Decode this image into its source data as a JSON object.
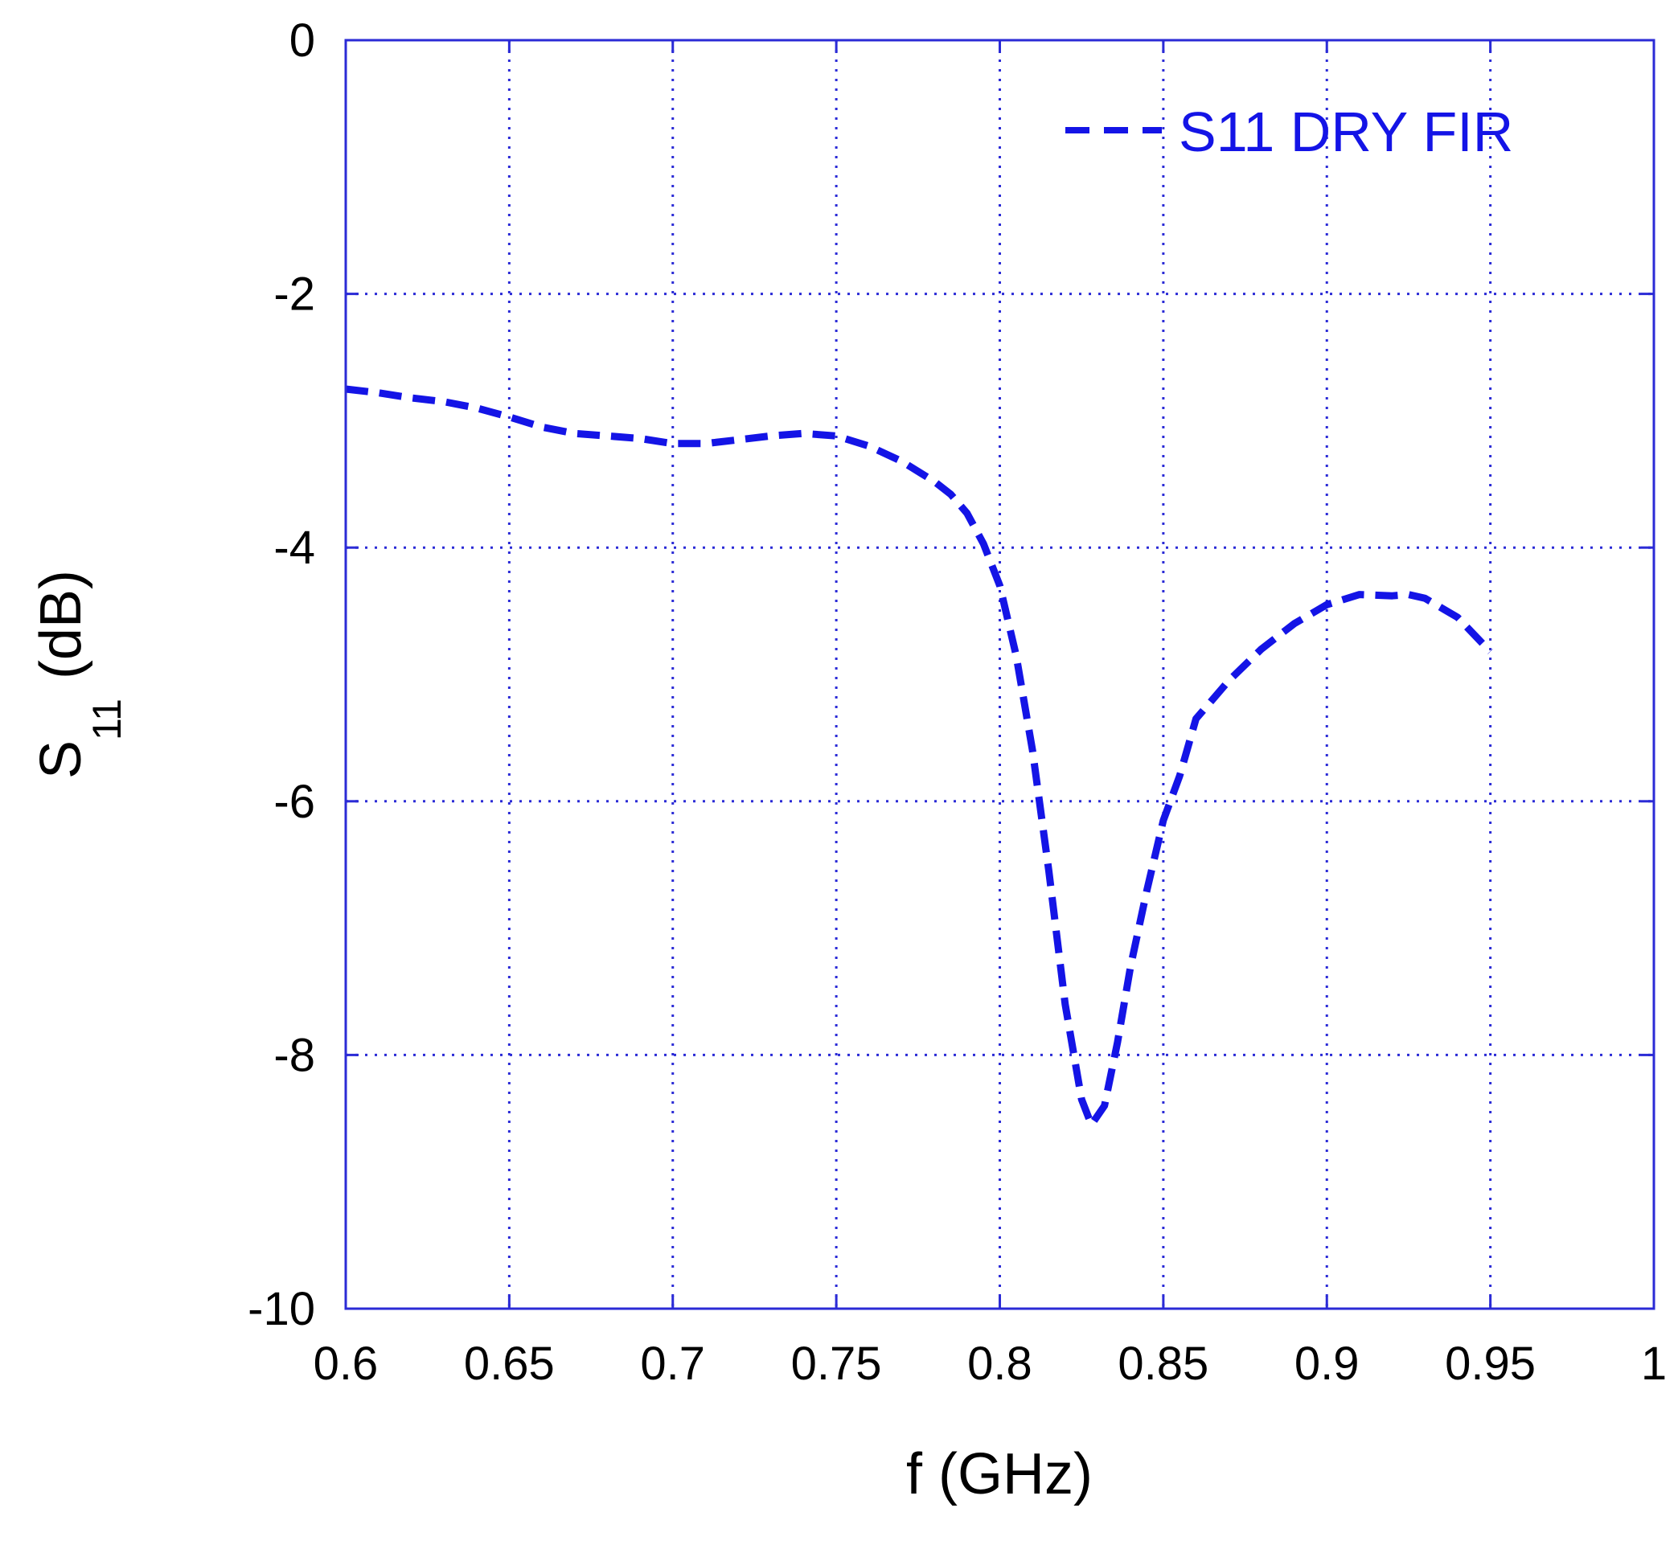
{
  "chart_data": {
    "type": "line",
    "title": "",
    "xlabel": "f (GHz)",
    "ylabel": {
      "main": "S",
      "subscript": "11",
      "unit": "(dB)"
    },
    "xlim": [
      0.6,
      1
    ],
    "ylim": [
      -10,
      0
    ],
    "x_ticks": [
      "0.6",
      "0.65",
      "0.7",
      "0.75",
      "0.8",
      "0.85",
      "0.9",
      "0.95",
      "1"
    ],
    "y_ticks": [
      "0",
      "-2",
      "-4",
      "-6",
      "-8",
      "-10"
    ],
    "grid": true,
    "legend_position": "top-right",
    "colors": {
      "axis": "#2b2bd6",
      "grid": "#2b2bd6",
      "series": "#1414e6"
    },
    "series": [
      {
        "name": "S11 DRY FIR",
        "line_style": "dashed",
        "points": [
          [
            0.6,
            -2.75
          ],
          [
            0.61,
            -2.78
          ],
          [
            0.62,
            -2.82
          ],
          [
            0.63,
            -2.85
          ],
          [
            0.64,
            -2.9
          ],
          [
            0.65,
            -2.97
          ],
          [
            0.66,
            -3.05
          ],
          [
            0.67,
            -3.1
          ],
          [
            0.68,
            -3.12
          ],
          [
            0.69,
            -3.14
          ],
          [
            0.7,
            -3.18
          ],
          [
            0.71,
            -3.18
          ],
          [
            0.72,
            -3.15
          ],
          [
            0.73,
            -3.12
          ],
          [
            0.74,
            -3.1
          ],
          [
            0.75,
            -3.12
          ],
          [
            0.76,
            -3.2
          ],
          [
            0.77,
            -3.32
          ],
          [
            0.78,
            -3.48
          ],
          [
            0.785,
            -3.58
          ],
          [
            0.79,
            -3.73
          ],
          [
            0.795,
            -3.97
          ],
          [
            0.8,
            -4.3
          ],
          [
            0.805,
            -4.85
          ],
          [
            0.81,
            -5.6
          ],
          [
            0.815,
            -6.55
          ],
          [
            0.82,
            -7.6
          ],
          [
            0.825,
            -8.35
          ],
          [
            0.828,
            -8.55
          ],
          [
            0.832,
            -8.4
          ],
          [
            0.836,
            -7.9
          ],
          [
            0.84,
            -7.3
          ],
          [
            0.845,
            -6.7
          ],
          [
            0.85,
            -6.15
          ],
          [
            0.855,
            -5.8
          ],
          [
            0.86,
            -5.35
          ],
          [
            0.87,
            -5.05
          ],
          [
            0.88,
            -4.8
          ],
          [
            0.89,
            -4.6
          ],
          [
            0.9,
            -4.45
          ],
          [
            0.91,
            -4.37
          ],
          [
            0.92,
            -4.38
          ],
          [
            0.925,
            -4.37
          ],
          [
            0.93,
            -4.4
          ],
          [
            0.94,
            -4.55
          ],
          [
            0.95,
            -4.82
          ]
        ]
      }
    ]
  }
}
